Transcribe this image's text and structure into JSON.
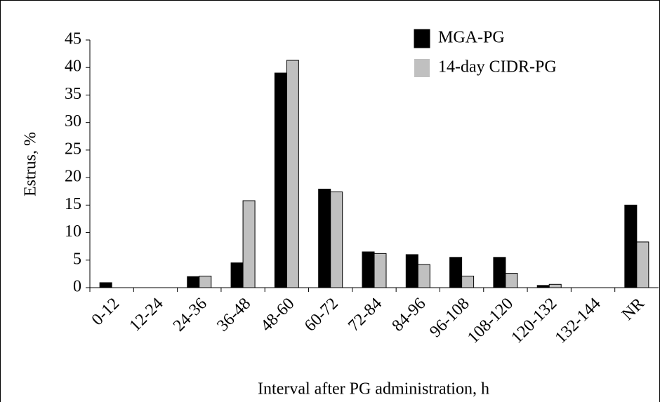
{
  "chart_data": {
    "type": "bar",
    "x_label": "Interval after PG administration, h",
    "y_label": "Estrus, %",
    "categories": [
      "0-12",
      "12-24",
      "24-36",
      "36-48",
      "48-60",
      "60-72",
      "72-84",
      "84-96",
      "96-108",
      "108-120",
      "120-132",
      "132-144",
      "NR"
    ],
    "series": [
      {
        "name": "MGA-PG",
        "color": "#000000",
        "values": [
          0.9,
          0,
          2,
          4.5,
          39,
          17.9,
          6.5,
          6,
          5.5,
          5.5,
          0.4,
          0,
          15
        ]
      },
      {
        "name": "14-day CIDR-PG",
        "color": "#c0c0c0",
        "values": [
          0,
          0,
          2.1,
          15.8,
          41.3,
          17.4,
          6.2,
          4.2,
          2.1,
          2.6,
          0.6,
          0,
          8.3
        ]
      }
    ],
    "ylim": [
      0,
      45
    ],
    "yticks": [
      0,
      5,
      10,
      15,
      20,
      25,
      30,
      35,
      40,
      45
    ],
    "grid": false,
    "legend": "top-right"
  }
}
